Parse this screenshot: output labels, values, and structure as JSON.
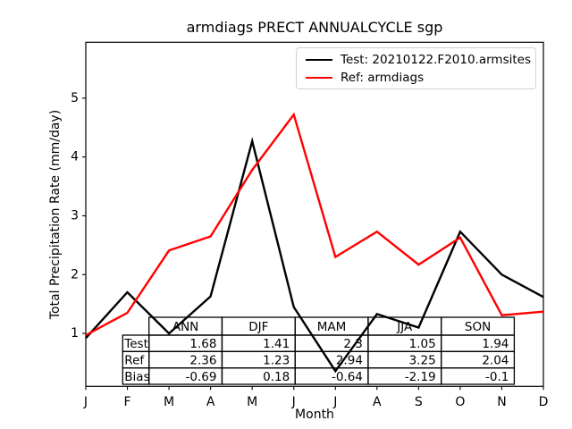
{
  "figure": {
    "title": "armdiags PRECT ANNUALCYCLE sgp",
    "xlabel": "Month",
    "ylabel": "Total Precipitation Rate (mm/day)"
  },
  "legend": {
    "position": "upper right",
    "items": [
      {
        "label": "Test: 20210122.F2010.armsites",
        "color": "#000000"
      },
      {
        "label": "Ref: armdiags",
        "color": "#ff0000"
      }
    ]
  },
  "chart_data": {
    "type": "line",
    "title": "armdiags PRECT ANNUALCYCLE sgp",
    "xlabel": "Month",
    "ylabel": "Total Precipitation Rate (mm/day)",
    "categories": [
      "J",
      "F",
      "M",
      "A",
      "M",
      "J",
      "J",
      "A",
      "S",
      "O",
      "N",
      "D"
    ],
    "series": [
      {
        "name": "Test: 20210122.F2010.armsites",
        "color": "#000000",
        "values": [
          0.92,
          1.7,
          1.0,
          1.63,
          4.27,
          1.45,
          0.36,
          1.33,
          1.1,
          2.73,
          2.0,
          1.62
        ]
      },
      {
        "name": "Ref: armdiags",
        "color": "#ff0000",
        "values": [
          0.97,
          1.35,
          2.41,
          2.65,
          3.78,
          4.72,
          2.3,
          2.73,
          2.17,
          2.63,
          1.31,
          1.37
        ]
      }
    ],
    "yticks": [
      1,
      2,
      3,
      4,
      5
    ],
    "ylim": [
      0.1,
      5.95
    ],
    "grid": false,
    "legend_position": "upper right",
    "stats_table": {
      "columns": [
        "ANN",
        "DJF",
        "MAM",
        "JJA",
        "SON"
      ],
      "rows": [
        {
          "label": "Test",
          "values": [
            "1.68",
            "1.41",
            "2.3",
            "1.05",
            "1.94"
          ]
        },
        {
          "label": "Ref",
          "values": [
            "2.36",
            "1.23",
            "2.94",
            "3.25",
            "2.04"
          ]
        },
        {
          "label": "Bias",
          "values": [
            "-0.69",
            "0.18",
            "-0.64",
            "-2.19",
            "-0.1"
          ]
        }
      ]
    }
  }
}
